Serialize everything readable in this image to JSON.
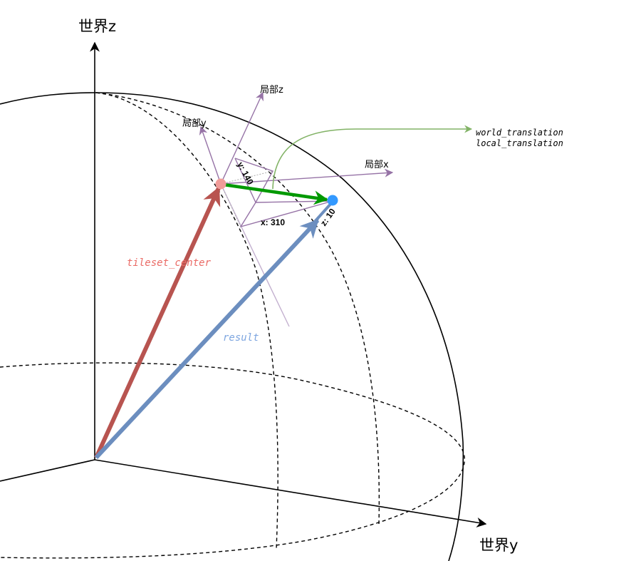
{
  "axes": {
    "world_z": "世界z",
    "world_y": "世界y",
    "local_x": "局部x",
    "local_y": "局部y",
    "local_z": "局部z"
  },
  "vectors": {
    "tileset_center": "tileset_center",
    "result": "result"
  },
  "annotation": {
    "line1": "world_translation",
    "line2": "local_translation"
  },
  "offsets": {
    "x": "x: 310",
    "y": "y: 140",
    "z": "z: 10"
  },
  "colors": {
    "tileset_center": "#b85450",
    "result": "#6c8ebf",
    "translation": "#009900",
    "local_axes": "#9673a6",
    "annotation_arrow": "#82b366",
    "origin_point": "#f19c99",
    "target_point": "#3399ff"
  }
}
